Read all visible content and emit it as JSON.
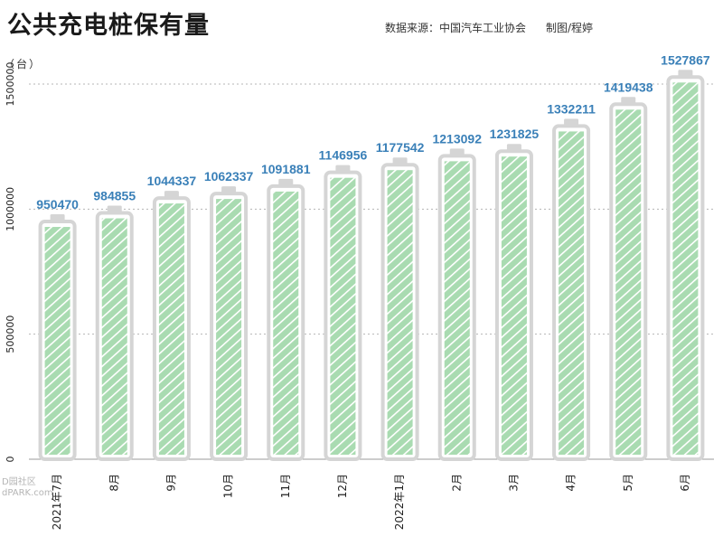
{
  "title": "公共充电桩保有量",
  "source": "数据来源：中国汽车工业协会",
  "author": "制图/程婷",
  "unit": "（台）",
  "watermark": [
    "D园社区",
    "dPARK.com"
  ],
  "colors": {
    "fill": "#a9dbb1",
    "stripe": "#ffffff",
    "shell": "#d5d5d5",
    "value_text": "#3a80b8",
    "axis_text": "#222222",
    "gridline": "#b5b5b5"
  },
  "chart_data": {
    "type": "bar",
    "title": "公共充电桩保有量",
    "ylabel": "（台）",
    "xlabel": "",
    "ylim": [
      0,
      1500000
    ],
    "yticks": [
      0,
      500000,
      1000000,
      1500000
    ],
    "grid": true,
    "categories": [
      "2021年7月",
      "8月",
      "9月",
      "10月",
      "11月",
      "12月",
      "2022年1月",
      "2月",
      "3月",
      "4月",
      "5月",
      "6月"
    ],
    "values": [
      950470,
      984855,
      1044337,
      1062337,
      1091881,
      1146956,
      1177542,
      1213092,
      1231825,
      1332211,
      1419438,
      1527867
    ]
  }
}
